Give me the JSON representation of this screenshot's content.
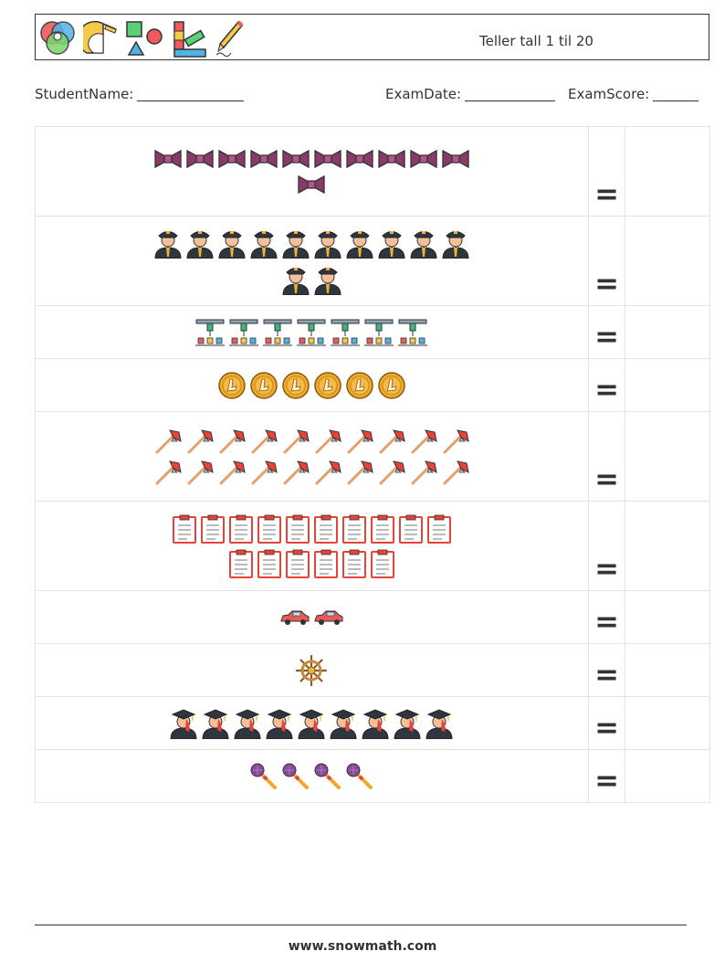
{
  "header": {
    "title": "Teller tall 1 til 20",
    "icons": [
      "color-wheel-icon",
      "protractor-icon",
      "shapes-icon",
      "ruler-swatch-icon",
      "pencil-icon"
    ]
  },
  "fields": {
    "student": "StudentName:",
    "date": "ExamDate:",
    "score": "ExamScore:"
  },
  "rows": [
    {
      "icon": "bowtie-icon",
      "rows": [
        10,
        1
      ],
      "equals": "="
    },
    {
      "icon": "police-officer-icon",
      "rows": [
        10,
        2
      ],
      "equals": "="
    },
    {
      "icon": "drone-icon",
      "rows": [
        7
      ],
      "equals": "="
    },
    {
      "icon": "coin-icon",
      "rows": [
        6
      ],
      "equals": "="
    },
    {
      "icon": "fire-axe-icon",
      "rows": [
        10,
        10
      ],
      "equals": "="
    },
    {
      "icon": "clipboard-icon",
      "rows": [
        10,
        6
      ],
      "equals": "="
    },
    {
      "icon": "car-icon",
      "rows": [
        2
      ],
      "equals": "="
    },
    {
      "icon": "ship-wheel-icon",
      "rows": [
        1
      ],
      "equals": "="
    },
    {
      "icon": "graduate-icon",
      "rows": [
        9
      ],
      "equals": "="
    },
    {
      "icon": "microphone-icon",
      "rows": [
        4
      ],
      "equals": "="
    }
  ],
  "footer": "www.snowmath.com"
}
